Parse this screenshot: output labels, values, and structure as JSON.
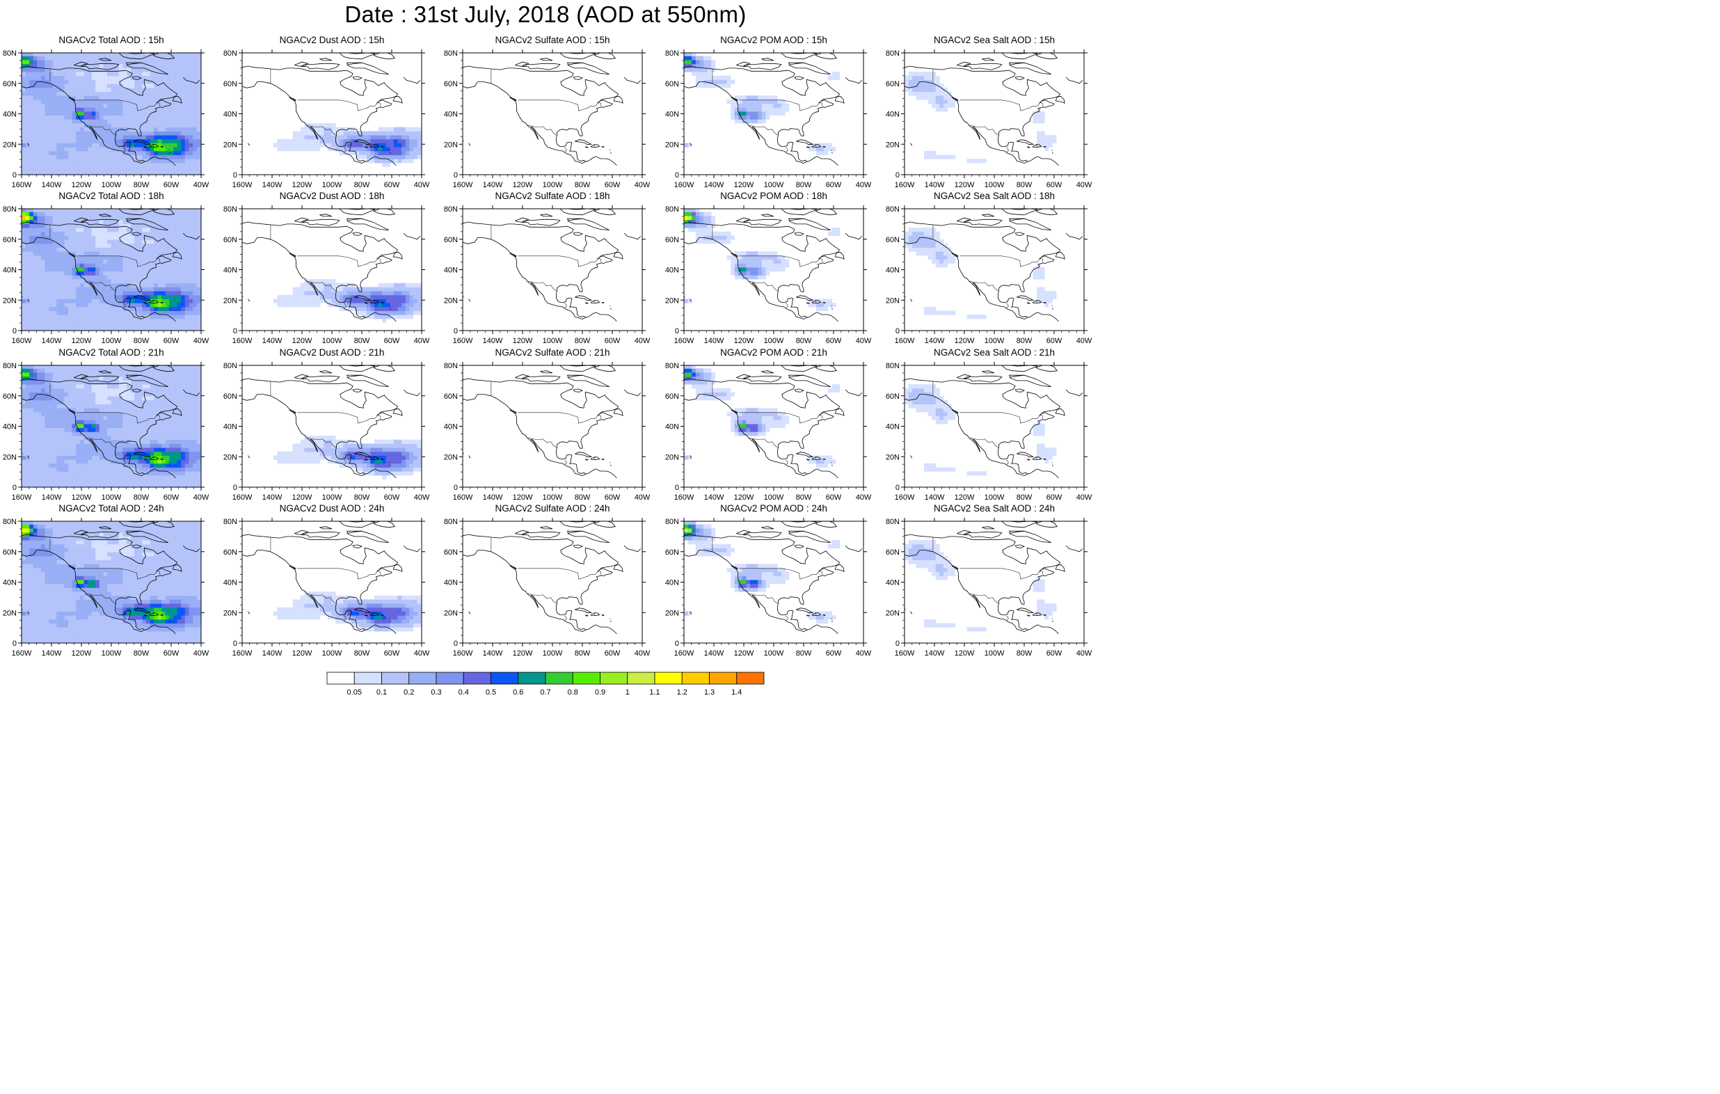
{
  "page": {
    "title": "Date : 31st July, 2018 (AOD at 550nm)"
  },
  "axes": {
    "x_tick_labels": [
      "160W",
      "140W",
      "120W",
      "100W",
      "80W",
      "60W",
      "40W"
    ],
    "y_tick_labels": [
      "0",
      "20N",
      "40N",
      "60N",
      "80N"
    ],
    "xlim_deg": [
      -160,
      -40
    ],
    "ylim_deg": [
      0,
      80
    ]
  },
  "colorbar": {
    "labels": [
      "0.05",
      "0.1",
      "0.2",
      "0.3",
      "0.4",
      "0.5",
      "0.6",
      "0.7",
      "0.8",
      "0.9",
      "1",
      "1.1",
      "1.2",
      "1.3",
      "1.4"
    ],
    "colors": [
      "#ffffff",
      "#d6e0ff",
      "#b4c4fa",
      "#98aef5",
      "#7f94ee",
      "#6567e2",
      "#0b57f5",
      "#00968e",
      "#33cc33",
      "#55ee00",
      "#99ee22",
      "#ccee44",
      "#ffff00",
      "#ffcc00",
      "#ffa400",
      "#ff7300",
      "#ff1a1a"
    ]
  },
  "chart_data": {
    "type": "heatmap",
    "title": "Date : 31st July, 2018 (AOD at 550nm)",
    "variable": "AOD at 550nm",
    "date": "31st July, 2018",
    "xlim": [
      -160,
      -40
    ],
    "ylim": [
      0,
      80
    ],
    "row_hours": [
      "15h",
      "18h",
      "21h",
      "24h"
    ],
    "col_species": [
      "Total",
      "Dust",
      "Sulfate",
      "POM",
      "Sea Salt"
    ],
    "panels": [
      [
        {
          "title": "NGACv2 Total AOD : 15h",
          "species": "Total",
          "hour": "15h",
          "max_level": "0.7-0.8"
        },
        {
          "title": "NGACv2 Dust AOD : 15h",
          "species": "Dust",
          "hour": "15h",
          "max_level": "0.4-0.5"
        },
        {
          "title": "NGACv2 Sulfate AOD : 15h",
          "species": "Sulfate",
          "hour": "15h",
          "max_level": "<0.05"
        },
        {
          "title": "NGACv2 POM AOD : 15h",
          "species": "POM",
          "hour": "15h",
          "max_level": "0.6-0.7"
        },
        {
          "title": "NGACv2 Sea Salt AOD : 15h",
          "species": "Sea Salt",
          "hour": "15h",
          "max_level": "0.1-0.2"
        }
      ],
      [
        {
          "title": "NGACv2 Total AOD : 18h",
          "species": "Total",
          "hour": "18h",
          "max_level": "1.2-1.3"
        },
        {
          "title": "NGACv2 Dust AOD : 18h",
          "species": "Dust",
          "hour": "18h",
          "max_level": "0.4-0.5"
        },
        {
          "title": "NGACv2 Sulfate AOD : 18h",
          "species": "Sulfate",
          "hour": "18h",
          "max_level": "<0.05"
        },
        {
          "title": "NGACv2 POM AOD : 18h",
          "species": "POM",
          "hour": "18h",
          "max_level": "1.2-1.3"
        },
        {
          "title": "NGACv2 Sea Salt AOD : 18h",
          "species": "Sea Salt",
          "hour": "18h",
          "max_level": "0.1-0.2"
        }
      ],
      [
        {
          "title": "NGACv2 Total AOD : 21h",
          "species": "Total",
          "hour": "21h",
          "max_level": "0.8-0.9"
        },
        {
          "title": "NGACv2 Dust AOD : 21h",
          "species": "Dust",
          "hour": "21h",
          "max_level": "0.4-0.5"
        },
        {
          "title": "NGACv2 Sulfate AOD : 21h",
          "species": "Sulfate",
          "hour": "21h",
          "max_level": "<0.05"
        },
        {
          "title": "NGACv2 POM AOD : 21h",
          "species": "POM",
          "hour": "21h",
          "max_level": "0.8-0.9"
        },
        {
          "title": "NGACv2 Sea Salt AOD : 21h",
          "species": "Sea Salt",
          "hour": "21h",
          "max_level": "0.1-0.2"
        }
      ],
      [
        {
          "title": "NGACv2 Total AOD : 24h",
          "species": "Total",
          "hour": "24h",
          "max_level": "1.1-1.2"
        },
        {
          "title": "NGACv2 Dust AOD : 24h",
          "species": "Dust",
          "hour": "24h",
          "max_level": "0.4-0.5"
        },
        {
          "title": "NGACv2 Sulfate AOD : 24h",
          "species": "Sulfate",
          "hour": "24h",
          "max_level": "<0.05"
        },
        {
          "title": "NGACv2 POM AOD : 24h",
          "species": "POM",
          "hour": "24h",
          "max_level": "1.1-1.2"
        },
        {
          "title": "NGACv2 Sea Salt  AOD : 24h",
          "species": "Sea Salt",
          "hour": "24h",
          "max_level": "0.1-0.2"
        }
      ]
    ]
  }
}
